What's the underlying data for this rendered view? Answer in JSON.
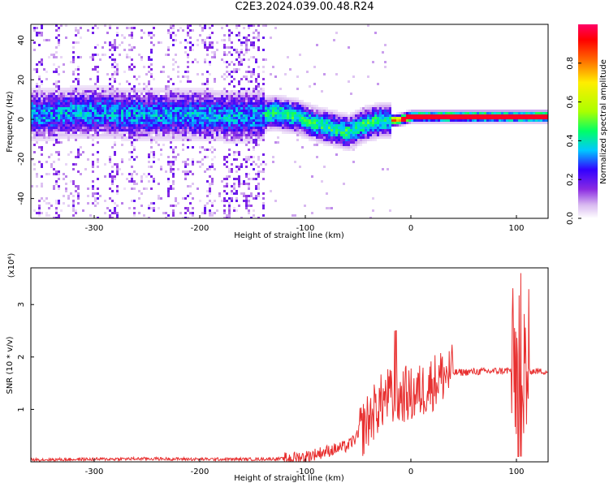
{
  "title": "C2E3.2024.039.00.48.R24",
  "chart_data": [
    {
      "type": "heatmap",
      "xlabel": "Height of straight line (km)",
      "ylabel": "Frequency (Hz)",
      "xlim": [
        -360,
        130
      ],
      "ylim": [
        -50,
        48
      ],
      "xticks": [
        -300,
        -200,
        -100,
        0,
        100
      ],
      "yticks": [
        -40,
        -20,
        0,
        20,
        40
      ],
      "colorbar": {
        "label": "Normalized spectral amplitude",
        "range": [
          0.0,
          1.0
        ],
        "ticks": [
          0.0,
          0.2,
          0.4,
          0.6,
          0.8
        ],
        "colormap": [
          "#ffffff",
          "#d8b8f0",
          "#8a2be2",
          "#3300ff",
          "#00c8ff",
          "#00ff66",
          "#aaff00",
          "#ffee00",
          "#ff6600",
          "#ff0000",
          "#ff0066"
        ]
      },
      "ridge": {
        "x": [
          -350,
          -320,
          -290,
          -260,
          -230,
          -200,
          -170,
          -150,
          -130,
          -110,
          -90,
          -75,
          -60,
          -45,
          -30,
          -15,
          0,
          20,
          50,
          80,
          100,
          130
        ],
        "y": [
          3,
          4,
          4,
          3,
          3,
          3,
          2,
          2,
          4,
          2,
          -2,
          -4,
          -6,
          -2,
          0,
          0,
          2,
          2,
          2,
          2,
          2,
          2
        ]
      },
      "grid": false
    },
    {
      "type": "line",
      "xlabel": "Height of straight line (km)",
      "ylabel": "SNR (10 * v/v)",
      "y_multiplier": "(x10⁴)",
      "xlim": [
        -360,
        130
      ],
      "ylim": [
        0,
        3.7
      ],
      "xticks": [
        -300,
        -200,
        -100,
        0,
        100
      ],
      "yticks": [
        1,
        2,
        3
      ],
      "color": "#e83030",
      "series": [
        {
          "x": [
            -360,
            -300,
            -250,
            -200,
            -150,
            -120,
            -100,
            -80,
            -60,
            -50,
            -40,
            -30,
            -20,
            -15,
            -10,
            -5,
            0,
            10,
            20,
            30,
            40,
            60,
            80,
            90,
            100,
            103,
            106,
            110,
            120,
            130
          ],
          "y": [
            0.04,
            0.05,
            0.06,
            0.05,
            0.05,
            0.06,
            0.1,
            0.2,
            0.3,
            0.5,
            0.8,
            1.1,
            1.3,
            1.0,
            1.25,
            1.3,
            1.25,
            1.35,
            1.5,
            1.65,
            1.7,
            1.72,
            1.73,
            1.74,
            1.75,
            1.6,
            1.7,
            1.73,
            1.73,
            1.72
          ]
        }
      ],
      "grid": false
    }
  ]
}
